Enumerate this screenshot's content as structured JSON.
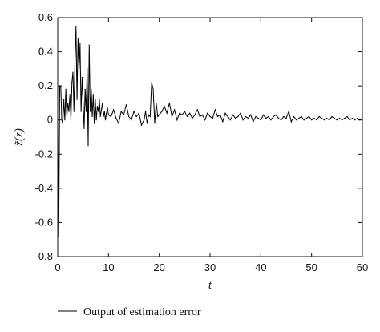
{
  "chart_data": {
    "type": "line",
    "title": "",
    "xlabel": "t",
    "ylabel": "z̃(z)",
    "xlim": [
      0,
      60
    ],
    "ylim": [
      -0.8,
      0.6
    ],
    "xticks": [
      "0",
      "10",
      "20",
      "30",
      "40",
      "50",
      "60"
    ],
    "yticks": [
      "0.6",
      "0.4",
      "0.2",
      "0",
      "-0.2",
      "-0.4",
      "-0.6",
      "-0.8"
    ],
    "grid": false,
    "legend_position": "bottom-left",
    "series": [
      {
        "name": "Output of estimation error",
        "color": "#000000",
        "x": [
          0,
          0.2,
          0.4,
          0.6,
          0.8,
          1.0,
          1.2,
          1.4,
          1.6,
          1.8,
          2.0,
          2.2,
          2.4,
          2.6,
          2.8,
          3.0,
          3.2,
          3.4,
          3.6,
          3.8,
          4.0,
          4.2,
          4.4,
          4.6,
          4.8,
          5.0,
          5.2,
          5.4,
          5.6,
          5.8,
          6.0,
          6.2,
          6.4,
          6.6,
          6.8,
          7.0,
          7.2,
          7.4,
          7.6,
          7.8,
          8.0,
          8.2,
          8.4,
          8.6,
          8.8,
          9.0,
          9.2,
          9.4,
          9.6,
          9.8,
          10.0,
          10.5,
          11.0,
          11.5,
          12.0,
          12.5,
          13.0,
          13.5,
          14.0,
          14.5,
          15.0,
          15.5,
          16.0,
          16.5,
          17.0,
          17.3,
          17.6,
          17.9,
          18.2,
          18.5,
          18.8,
          19.1,
          19.4,
          19.7,
          20.0,
          20.5,
          21.0,
          21.5,
          22.0,
          22.5,
          23.0,
          23.5,
          24.0,
          24.5,
          25.0,
          25.5,
          26.0,
          26.5,
          27.0,
          27.5,
          28.0,
          28.5,
          29.0,
          29.5,
          30.0,
          30.5,
          31.0,
          31.5,
          32.0,
          32.5,
          33.0,
          33.5,
          34.0,
          34.5,
          35.0,
          35.5,
          36.0,
          36.5,
          37.0,
          37.5,
          38.0,
          38.5,
          39.0,
          39.5,
          40.0,
          40.5,
          41.0,
          41.5,
          42.0,
          42.5,
          43.0,
          43.5,
          44.0,
          44.5,
          45.0,
          45.5,
          46.0,
          46.5,
          47.0,
          47.5,
          48.0,
          48.5,
          49.0,
          49.5,
          50.0,
          50.5,
          51.0,
          51.5,
          52.0,
          52.5,
          53.0,
          53.5,
          54.0,
          54.5,
          55.0,
          55.5,
          56.0,
          56.5,
          57.0,
          57.5,
          58.0,
          58.5,
          59.0,
          59.5,
          60.0
        ],
        "y": [
          0.0,
          -0.68,
          0.2,
          0.2,
          0.0,
          -0.02,
          0.12,
          0.0,
          0.18,
          0.02,
          0.1,
          0.05,
          0.15,
          0.0,
          0.22,
          0.28,
          0.05,
          0.35,
          0.55,
          0.12,
          0.48,
          0.3,
          0.45,
          0.05,
          0.25,
          0.1,
          -0.05,
          0.18,
          0.05,
          0.3,
          -0.15,
          0.44,
          0.05,
          0.18,
          0.02,
          0.15,
          -0.02,
          0.12,
          0.0,
          0.08,
          0.05,
          0.12,
          0.02,
          0.06,
          0.1,
          0.02,
          0.05,
          0.0,
          0.04,
          0.07,
          0.03,
          0.02,
          0.06,
          0.01,
          -0.02,
          0.05,
          0.03,
          0.09,
          0.02,
          0.0,
          0.05,
          0.02,
          0.04,
          -0.03,
          0.0,
          0.05,
          -0.02,
          0.03,
          0.02,
          0.22,
          0.18,
          -0.02,
          0.1,
          0.02,
          0.03,
          0.05,
          0.08,
          0.04,
          0.1,
          0.02,
          0.06,
          0.0,
          0.04,
          0.03,
          0.05,
          0.02,
          0.04,
          0.01,
          0.03,
          0.06,
          0.02,
          0.03,
          0.0,
          0.04,
          0.02,
          0.01,
          0.06,
          0.02,
          0.03,
          -0.01,
          0.04,
          0.02,
          0.0,
          0.03,
          0.01,
          0.02,
          0.04,
          0.0,
          0.02,
          0.01,
          0.03,
          -0.01,
          0.02,
          0.01,
          0.0,
          0.03,
          0.01,
          0.02,
          0.0,
          0.02,
          0.03,
          0.01,
          0.0,
          0.02,
          0.01,
          0.05,
          -0.01,
          0.02,
          0.0,
          0.01,
          0.02,
          0.0,
          0.01,
          0.02,
          0.0,
          0.01,
          0.0,
          0.02,
          0.01,
          0.0,
          0.01,
          0.0,
          0.02,
          0.01,
          0.0,
          0.01,
          0.0,
          0.01,
          0.02,
          0.0,
          0.01,
          0.0,
          0.01,
          0.0,
          0.01
        ]
      }
    ]
  }
}
